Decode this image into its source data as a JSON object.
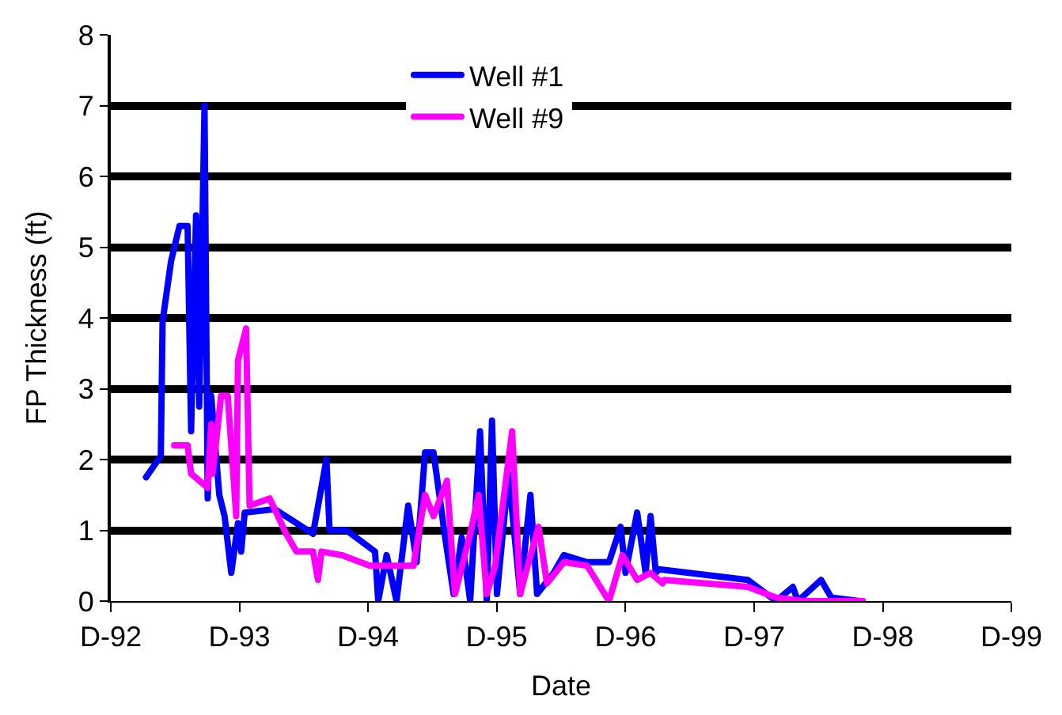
{
  "chart_data": {
    "type": "line",
    "xlabel": "Date",
    "ylabel": "FP Thickness (ft)",
    "xlim": [
      "1992-12-01",
      "1999-12-01"
    ],
    "xticks": [
      {
        "value": "1992-12-01",
        "label": "D-92"
      },
      {
        "value": "1993-12-01",
        "label": "D-93"
      },
      {
        "value": "1994-12-01",
        "label": "D-94"
      },
      {
        "value": "1995-12-01",
        "label": "D-95"
      },
      {
        "value": "1996-12-01",
        "label": "D-96"
      },
      {
        "value": "1997-12-01",
        "label": "D-97"
      },
      {
        "value": "1998-12-01",
        "label": "D-98"
      },
      {
        "value": "1999-12-01",
        "label": "D-99"
      }
    ],
    "ylim": [
      0,
      8
    ],
    "yticks": [
      0,
      1,
      2,
      3,
      4,
      5,
      6,
      7,
      8
    ],
    "grid": "y",
    "legend": "top",
    "marker": "none",
    "line_style": "solid",
    "series": [
      {
        "name": "Well #1",
        "color": "#0000ff",
        "x": [
          "1993-03-11",
          "1993-04-22",
          "1993-04-27",
          "1993-05-21",
          "1993-06-14",
          "1993-07-07",
          "1993-07-17",
          "1993-07-31",
          "1993-08-09",
          "1993-08-24",
          "1993-09-02",
          "1993-09-12",
          "1993-10-05",
          "1993-10-20",
          "1993-11-08",
          "1993-11-27",
          "1993-12-06",
          "1993-12-16",
          "1994-03-11",
          "1994-06-28",
          "1994-08-05",
          "1994-08-14",
          "1994-10-01",
          "1994-12-21",
          "1994-12-30",
          "1995-01-23",
          "1995-02-20",
          "1995-03-25",
          "1995-04-18",
          "1995-05-12",
          "1995-06-05",
          "1995-07-08",
          "1995-08-01",
          "1995-08-24",
          "1995-09-17",
          "1995-10-15",
          "1995-11-03",
          "1995-11-18",
          "1995-12-02",
          "1996-01-04",
          "1996-02-06",
          "1996-03-06",
          "1996-03-25",
          "1996-05-11",
          "1996-06-09",
          "1996-08-14",
          "1996-10-15",
          "1996-11-17",
          "1996-12-01",
          "1997-01-03",
          "1997-01-27",
          "1997-02-10",
          "1997-02-25",
          "1997-03-06",
          "1997-11-13",
          "1998-02-01",
          "1998-03-21",
          "1998-04-04",
          "1998-06-09",
          "1998-07-08",
          "1998-09-26"
        ],
        "values": [
          1.75,
          2.05,
          3.95,
          4.8,
          5.3,
          5.3,
          2.4,
          5.45,
          2.75,
          7.0,
          1.45,
          2.9,
          1.5,
          1.2,
          0.4,
          1.1,
          0.7,
          1.25,
          1.3,
          0.95,
          2.0,
          1.0,
          1.0,
          0.7,
          0.0,
          0.65,
          0.0,
          1.35,
          0.55,
          2.1,
          2.1,
          0.9,
          0.1,
          0.9,
          0.0,
          2.4,
          0.0,
          2.55,
          0.1,
          1.8,
          0.1,
          1.5,
          0.1,
          0.4,
          0.65,
          0.55,
          0.55,
          1.05,
          0.4,
          1.25,
          0.4,
          1.2,
          0.4,
          0.45,
          0.3,
          0.0,
          0.2,
          0.0,
          0.3,
          0.05,
          0.0
        ]
      },
      {
        "name": "Well #9",
        "color": "#ff00ff",
        "x": [
          "1993-05-30",
          "1993-07-07",
          "1993-07-17",
          "1993-09-02",
          "1993-09-12",
          "1993-09-16",
          "1993-10-10",
          "1993-10-29",
          "1993-11-22",
          "1993-11-27",
          "1993-12-20",
          "1993-12-30",
          "1994-02-25",
          "1994-04-13",
          "1994-05-12",
          "1994-06-28",
          "1994-07-12",
          "1994-07-22",
          "1994-09-17",
          "1994-12-06",
          "1995-01-23",
          "1995-04-09",
          "1995-05-12",
          "1995-06-05",
          "1995-07-13",
          "1995-08-05",
          "1995-09-17",
          "1995-10-11",
          "1995-11-03",
          "1995-11-27",
          "1996-01-14",
          "1996-02-06",
          "1996-03-01",
          "1996-03-29",
          "1996-04-22",
          "1996-06-09",
          "1996-08-14",
          "1996-10-15",
          "1996-11-22",
          "1997-01-03",
          "1997-02-10",
          "1997-03-16",
          "1997-03-20",
          "1997-11-13",
          "1998-02-01",
          "1998-04-23",
          "1998-10-06"
        ],
        "values": [
          2.2,
          2.2,
          1.8,
          1.6,
          2.5,
          1.8,
          2.9,
          2.9,
          1.2,
          3.4,
          3.85,
          1.35,
          1.45,
          0.95,
          0.7,
          0.7,
          0.3,
          0.7,
          0.65,
          0.5,
          0.5,
          0.5,
          1.5,
          1.2,
          1.7,
          0.1,
          0.95,
          1.5,
          0.1,
          0.5,
          2.4,
          0.1,
          0.55,
          1.05,
          0.25,
          0.55,
          0.5,
          0.0,
          0.65,
          0.3,
          0.4,
          0.25,
          0.3,
          0.2,
          0.05,
          0.0,
          0.0
        ]
      }
    ]
  }
}
